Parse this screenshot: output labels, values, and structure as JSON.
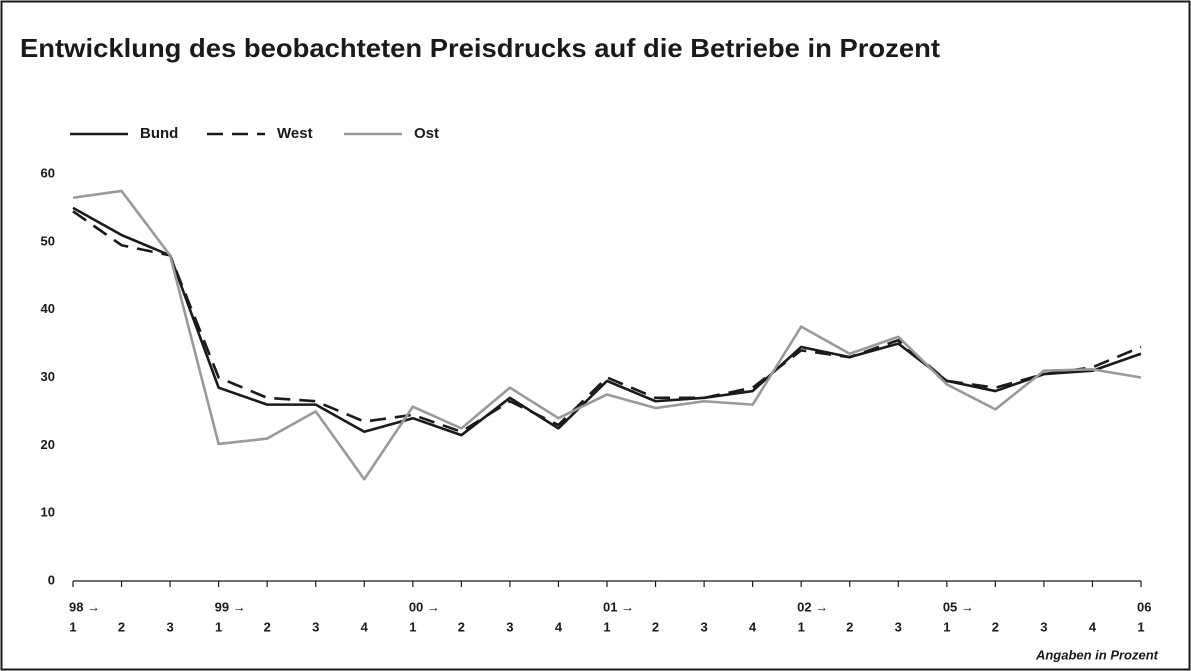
{
  "chart_data": {
    "type": "line",
    "title": "Entwicklung des beobachteten Preisdrucks auf die Betriebe in Prozent",
    "footnote": "Angaben in Prozent",
    "categories": [
      "1",
      "2",
      "3",
      "1",
      "2",
      "3",
      "4",
      "1",
      "2",
      "3",
      "4",
      "1",
      "2",
      "3",
      "4",
      "1",
      "2",
      "3",
      "1",
      "2",
      "3",
      "4",
      "1"
    ],
    "year_labels": [
      "98 →",
      null,
      null,
      "99 →",
      null,
      null,
      null,
      "00 →",
      null,
      null,
      null,
      "01 →",
      null,
      null,
      null,
      "02 →",
      null,
      null,
      "05 →",
      null,
      null,
      null,
      "06"
    ],
    "series": [
      {
        "name": "Bund",
        "color": "#1a1a1a",
        "dash": "solid",
        "values": [
          55,
          51,
          48,
          28.5,
          26,
          26,
          22,
          24,
          21.5,
          27,
          22.5,
          29.5,
          26.5,
          27,
          28,
          34.5,
          33,
          35,
          29.5,
          28,
          30.5,
          31,
          33.5
        ]
      },
      {
        "name": "West",
        "color": "#1a1a1a",
        "dash": "dashed",
        "values": [
          54.5,
          49.5,
          48,
          30,
          27,
          26.5,
          23.5,
          24.5,
          22,
          26.5,
          23,
          30,
          27,
          27,
          28.5,
          34,
          33,
          35.5,
          29.5,
          28.5,
          30.5,
          31.5,
          34.5
        ]
      },
      {
        "name": "Ost",
        "color": "#999999",
        "dash": "solid",
        "values": [
          56.5,
          57.5,
          48,
          20.2,
          21,
          25,
          15,
          25.7,
          22.5,
          28.5,
          24,
          27.5,
          25.5,
          26.5,
          26,
          37.5,
          33.5,
          36,
          29,
          25.3,
          31,
          31.2,
          30
        ]
      }
    ],
    "ylim": [
      0,
      60
    ],
    "yticks": [
      0,
      10,
      20,
      30,
      40,
      50,
      60
    ],
    "grid": false
  }
}
